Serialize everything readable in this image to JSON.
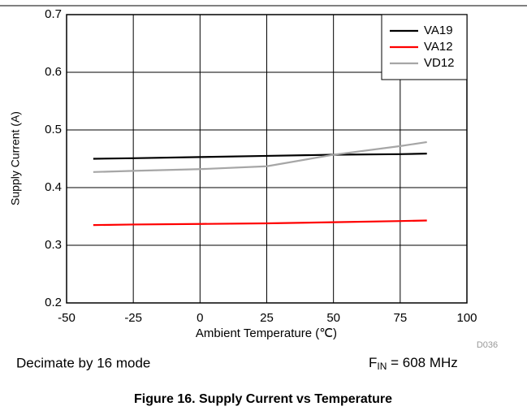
{
  "chart_data": {
    "type": "line",
    "xlabel": "Ambient Temperature (℃)",
    "ylabel": "Supply Current (A)",
    "x": [
      -40,
      -25,
      0,
      25,
      50,
      75,
      85
    ],
    "series": [
      {
        "name": "VA19",
        "color": "#000000",
        "values": [
          0.45,
          0.451,
          0.453,
          0.455,
          0.457,
          0.458,
          0.459
        ]
      },
      {
        "name": "VA12",
        "color": "#ff0000",
        "values": [
          0.335,
          0.336,
          0.337,
          0.338,
          0.34,
          0.342,
          0.343
        ]
      },
      {
        "name": "VD12",
        "color": "#a6a6a6",
        "values": [
          0.427,
          0.429,
          0.432,
          0.437,
          0.457,
          0.472,
          0.479
        ]
      }
    ],
    "xlim": [
      -50,
      100
    ],
    "xticks": [
      -50,
      -25,
      0,
      25,
      50,
      75,
      100
    ],
    "ylim": [
      0.2,
      0.7
    ],
    "yticks": [
      0.2,
      0.3,
      0.4,
      0.5,
      0.6,
      0.7
    ],
    "grid": true,
    "legend": "upper right",
    "code": "D036",
    "mode": "Decimate by 16 mode",
    "fin": [
      "F",
      "IN",
      " = 608 MHz"
    ],
    "caption": "Figure 16. Supply Current vs Temperature"
  }
}
